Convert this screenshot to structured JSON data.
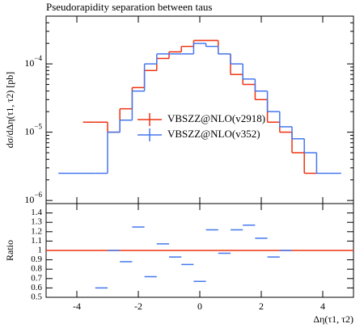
{
  "chart_data": [
    {
      "type": "histogram",
      "title": "Pseudorapidity separation between taus",
      "ylabel": "dσ/dΔη(τ1, τ2) [pb]",
      "log_y": true,
      "legend": "center",
      "bins": [
        -5,
        -4.6,
        -4.2,
        -3.8,
        -3.4,
        -3.0,
        -2.6,
        -2.2,
        -1.8,
        -1.4,
        -1.0,
        -0.6,
        -0.2,
        0.2,
        0.6,
        1.0,
        1.4,
        1.8,
        2.2,
        2.6,
        3.0,
        3.4,
        3.8,
        4.2,
        4.6,
        5
      ],
      "xlim": [
        -5,
        5
      ],
      "ylim": [
        9e-07,
        0.0005
      ],
      "yticks": [
        {
          "value": 1e-06,
          "label": "10",
          "exponent": "−6"
        },
        {
          "value": 1e-05,
          "label": "10",
          "exponent": "−5"
        },
        {
          "value": 0.0001,
          "label": "10",
          "exponent": "−4"
        }
      ],
      "series": [
        {
          "name": "VBSZZ@NLO(v2918)",
          "color": "#ee3311",
          "values": [
            null,
            null,
            null,
            1.4e-05,
            1.4e-05,
            1e-05,
            2.2e-05,
            4.5e-05,
            8e-05,
            0.00012,
            0.00015,
            0.00018,
            0.00022,
            0.00022,
            0.00014,
            7e-05,
            5e-05,
            3e-05,
            1.4e-05,
            1e-05,
            5e-06,
            2.5e-06,
            null,
            null,
            null
          ]
        },
        {
          "name": "VBSZZ@NLO(v352)",
          "color": "#4477ee",
          "values": [
            null,
            2.5e-06,
            2.5e-06,
            2.5e-06,
            2.5e-06,
            1e-05,
            1.5e-05,
            4e-05,
            0.0001,
            0.00014,
            0.00014,
            0.00014,
            0.0002,
            0.00018,
            0.00014,
            0.0001,
            6e-05,
            4e-05,
            2e-05,
            1.2e-05,
            8e-06,
            5e-06,
            2.5e-06,
            2.5e-06,
            null
          ]
        }
      ]
    },
    {
      "type": "histogram",
      "ylabel": "Ratio",
      "xlabel": "Δη(τ1, τ2)",
      "bins": [
        -5,
        -4.6,
        -4.2,
        -3.8,
        -3.4,
        -3.0,
        -2.6,
        -2.2,
        -1.8,
        -1.4,
        -1.0,
        -0.6,
        -0.2,
        0.2,
        0.6,
        1.0,
        1.4,
        1.8,
        2.2,
        2.6,
        3.0,
        3.4,
        3.8,
        4.2,
        4.6,
        5
      ],
      "xlim": [
        -5,
        5
      ],
      "xticks": [
        -4,
        -2,
        0,
        2,
        4
      ],
      "ylim": [
        0.5,
        1.5
      ],
      "yticks": [
        0.5,
        0.6,
        0.7,
        0.8,
        0.9,
        1,
        1.1,
        1.2,
        1.3,
        1.4
      ],
      "reference": 1,
      "reference_color": "#ee3311",
      "series": [
        {
          "color": "#4477ee",
          "values": [
            null,
            null,
            null,
            null,
            0.6,
            1.0,
            0.88,
            1.25,
            0.72,
            1.07,
            0.93,
            0.85,
            0.67,
            1.22,
            0.97,
            1.22,
            1.27,
            1.13,
            0.93,
            1.0,
            null,
            null,
            null,
            null,
            null
          ]
        }
      ]
    }
  ]
}
